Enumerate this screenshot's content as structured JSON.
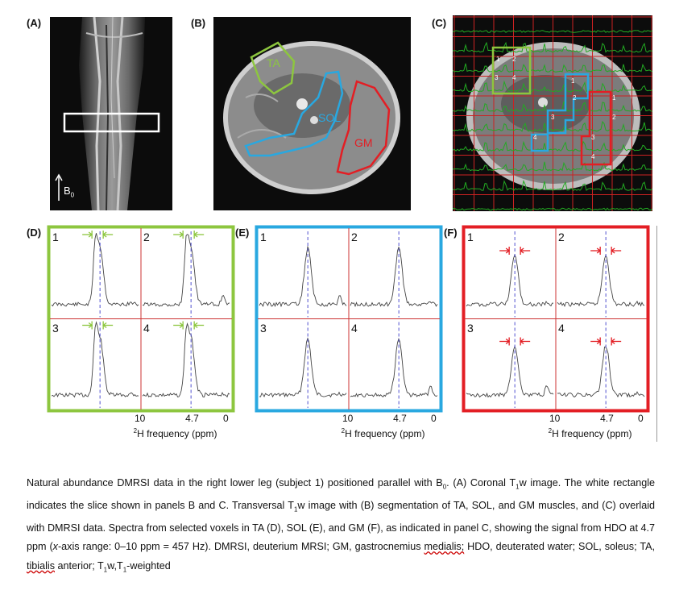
{
  "panels": {
    "A": {
      "label": "(A)",
      "field_label": "B",
      "field_sub": "0"
    },
    "B": {
      "label": "(B)",
      "seg_labels": [
        "TA",
        "SOL",
        "GM"
      ]
    },
    "C": {
      "label": "(C)",
      "voxel_numbers": {
        "TA": [
          "1",
          "2",
          "3",
          "4"
        ],
        "SOL": [
          "1",
          "2",
          "3",
          "4"
        ],
        "GM": [
          "1",
          "2",
          "3",
          "4"
        ]
      }
    },
    "D": {
      "label": "(D)",
      "quadrants": [
        "1",
        "2",
        "3",
        "4"
      ]
    },
    "E": {
      "label": "(E)",
      "quadrants": [
        "1",
        "2",
        "3",
        "4"
      ]
    },
    "F": {
      "label": "(F)",
      "quadrants": [
        "1",
        "2",
        "3",
        "4"
      ]
    }
  },
  "axis": {
    "ticks": [
      "10",
      "4.7",
      "0"
    ],
    "xlabel_sup": "2",
    "xlabel": "H frequency (ppm)"
  },
  "colors": {
    "TA": "#8dc63f",
    "SOL": "#29a8e0",
    "GM": "#e31e24",
    "grid": "#cc2222",
    "spectrum": "#22aa22"
  },
  "caption": {
    "t1": "Natural abundance DMRSI data in the right lower leg (subject 1) positioned parallel with B",
    "t1_sub": "0",
    "t2": ". (A) Coronal T",
    "t2_sub": "1",
    "t3": "w image. The white rectangle indicates the slice shown in panels B and C. Transversal T",
    "t3_sub": "1",
    "t4": "w image with (B) segmentation of TA, SOL, and GM muscles, and (C) overlaid with DMRSI data. Spectra from selected voxels in TA (D), SOL (E), and GM (F), as indicated in panel C, showing the signal from HDO at 4.7 ppm (",
    "t4_italic": "x",
    "t5": "-axis range: 0–10 ppm = 457 Hz). DMRSI, deuterium MRSI; GM, gastrocnemius ",
    "t5_wavy": "medialis;",
    "t6": " HDO, deuterated water; SOL, soleus; TA, ",
    "t6_wavy": "tibialis",
    "t7": " anterior; T",
    "t7_sub": "1",
    "t8": "w,T",
    "t8_sub": "1",
    "t9": "-weighted"
  }
}
